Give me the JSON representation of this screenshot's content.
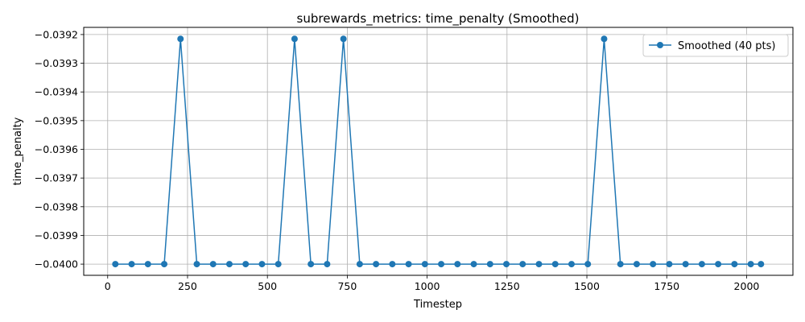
{
  "chart_data": {
    "type": "line",
    "title": "subrewards_metrics: time_penalty (Smoothed)",
    "xlabel": "Timestep",
    "ylabel": "time_penalty",
    "xlim": [
      -75,
      2145
    ],
    "ylim": [
      -0.040039,
      -0.039175
    ],
    "xticks": [
      0,
      250,
      500,
      750,
      1000,
      1250,
      1500,
      1750,
      2000
    ],
    "yticks": [
      -0.0392,
      -0.0393,
      -0.0394,
      -0.0395,
      -0.0396,
      -0.0397,
      -0.0398,
      -0.0399,
      -0.04
    ],
    "xtick_labels": [
      "0",
      "250",
      "500",
      "750",
      "1000",
      "1250",
      "1500",
      "1750",
      "2000"
    ],
    "ytick_labels": [
      "−0.0392",
      "−0.0393",
      "−0.0394",
      "−0.0395",
      "−0.0396",
      "−0.0397",
      "−0.0398",
      "−0.0399",
      "−0.0400"
    ],
    "grid": true,
    "legend_position": "top-right",
    "series": [
      {
        "name": "Smoothed (40 pts)",
        "color": "#1f77b4",
        "marker": "circle",
        "x": [
          24,
          75,
          126,
          177,
          228,
          279,
          330,
          381,
          432,
          483,
          534,
          585,
          636,
          687,
          738,
          789,
          840,
          891,
          942,
          993,
          1044,
          1095,
          1146,
          1197,
          1248,
          1299,
          1350,
          1401,
          1452,
          1503,
          1554,
          1605,
          1656,
          1707,
          1758,
          1809,
          1860,
          1911,
          1962,
          2013,
          2045
        ],
        "y": [
          -0.04,
          -0.04,
          -0.04,
          -0.04,
          -0.039215,
          -0.04,
          -0.04,
          -0.04,
          -0.04,
          -0.04,
          -0.04,
          -0.039215,
          -0.04,
          -0.04,
          -0.039215,
          -0.04,
          -0.04,
          -0.04,
          -0.04,
          -0.04,
          -0.04,
          -0.04,
          -0.04,
          -0.04,
          -0.04,
          -0.04,
          -0.04,
          -0.04,
          -0.04,
          -0.04,
          -0.039215,
          -0.04,
          -0.04,
          -0.04,
          -0.04,
          -0.04,
          -0.04,
          -0.04,
          -0.04,
          -0.04,
          -0.04
        ]
      }
    ]
  }
}
